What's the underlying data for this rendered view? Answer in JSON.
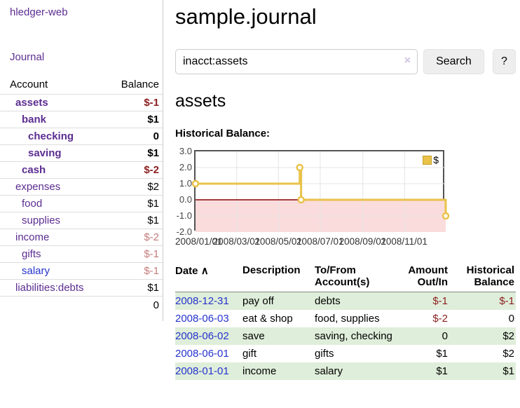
{
  "app": {
    "brand": "hledger-web",
    "nav_journal": "Journal"
  },
  "sidebar": {
    "accounts_table": {
      "header_account": "Account",
      "header_balance": "Balance",
      "rows": [
        {
          "name": "assets",
          "balance": "$-1"
        },
        {
          "name": "bank",
          "balance": "$1"
        },
        {
          "name": "checking",
          "balance": "0"
        },
        {
          "name": "saving",
          "balance": "$1"
        },
        {
          "name": "cash",
          "balance": "$-2"
        },
        {
          "name": "expenses",
          "balance": "$2"
        },
        {
          "name": "food",
          "balance": "$1"
        },
        {
          "name": "supplies",
          "balance": "$1"
        },
        {
          "name": "income",
          "balance": "$-2"
        },
        {
          "name": "gifts",
          "balance": "$-1"
        },
        {
          "name": "salary",
          "balance": "$-1"
        },
        {
          "name": "liabilities:debts",
          "balance": "$1"
        }
      ],
      "total": "0"
    }
  },
  "main": {
    "title": "sample.journal",
    "search": {
      "value": "inacct:assets",
      "clear_icon": "×",
      "search_button": "Search",
      "help_button": "?"
    },
    "account_heading": "assets",
    "chart_title": "Historical Balance:",
    "register": {
      "headers": {
        "date": "Date",
        "sort_icon": "∧",
        "description": "Description",
        "account": "To/From Account(s)",
        "amount": "Amount Out/In",
        "balance": "Historical Balance"
      },
      "rows": [
        {
          "date": "2008-12-31",
          "description": "pay off",
          "account": "debts",
          "amount": "$-1",
          "balance": "$-1"
        },
        {
          "date": "2008-06-03",
          "description": "eat & shop",
          "account": "food, supplies",
          "amount": "$-2",
          "balance": "0"
        },
        {
          "date": "2008-06-02",
          "description": "save",
          "account": "saving, checking",
          "amount": "0",
          "balance": "$2"
        },
        {
          "date": "2008-06-01",
          "description": "gift",
          "account": "gifts",
          "amount": "$1",
          "balance": "$2"
        },
        {
          "date": "2008-01-01",
          "description": "income",
          "account": "salary",
          "amount": "$1",
          "balance": "$1"
        }
      ]
    }
  },
  "colors": {
    "link_purple": "#5c2d91",
    "link_blue": "#2533cd",
    "negative_strong": "#8b1e1e",
    "negative_soft": "#c47b7b",
    "stripe_green": "#dfeeda",
    "series_gold": "#e9c24a",
    "negative_region_pink": "#fbdcdc",
    "zero_line_red": "#8b0000"
  },
  "chart_data": {
    "type": "line",
    "style": "step",
    "title": "Historical Balance:",
    "legend": "$",
    "legend_position": "top-right",
    "grid": true,
    "series": [
      {
        "name": "$",
        "points": [
          [
            "2008-01-01",
            1
          ],
          [
            "2008-06-01",
            2
          ],
          [
            "2008-06-03",
            0
          ],
          [
            "2008-12-31",
            -1
          ]
        ]
      }
    ],
    "xrange": [
      "2008-01-01",
      "2008-12-31"
    ],
    "ylim": [
      -2.0,
      3.0
    ],
    "yticks": [
      3,
      2,
      1,
      0,
      -1,
      -2
    ],
    "ytick_labels": [
      "3.0",
      "2.0",
      "1.0",
      "0.0",
      "-1.0",
      "-2.0"
    ],
    "xticks": [
      [
        "2008-01-01",
        "2008/01/01"
      ],
      [
        "2008-03-01",
        "2008/03/01"
      ],
      [
        "2008-05-01",
        "2008/05/01"
      ],
      [
        "2008-07-01",
        "2008/07/01"
      ],
      [
        "2008-09-01",
        "2008/09/01"
      ],
      [
        "2008-11-01",
        "2008/11/01"
      ]
    ],
    "negative_region_filled": true
  }
}
